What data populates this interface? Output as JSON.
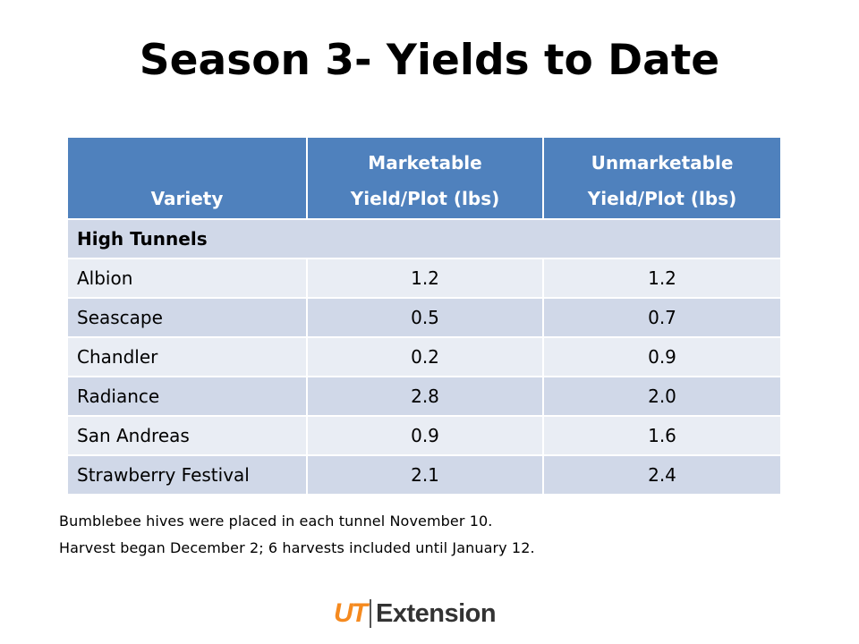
{
  "slide": {
    "title": "Season 3- Yields to Date"
  },
  "table": {
    "headers": [
      {
        "line1": "",
        "line2": "Variety"
      },
      {
        "line1": "Marketable",
        "line2": "Yield/Plot (lbs)"
      },
      {
        "line1": "Unmarketable",
        "line2": "Yield/Plot (lbs)"
      }
    ],
    "section_label": "High Tunnels",
    "rows": [
      {
        "variety": "Albion",
        "marketable": "1.2",
        "unmarketable": "1.2"
      },
      {
        "variety": "Seascape",
        "marketable": "0.5",
        "unmarketable": "0.7"
      },
      {
        "variety": "Chandler",
        "marketable": "0.2",
        "unmarketable": "0.9"
      },
      {
        "variety": "Radiance",
        "marketable": "2.8",
        "unmarketable": "2.0"
      },
      {
        "variety": "San Andreas",
        "marketable": "0.9",
        "unmarketable": "1.6"
      },
      {
        "variety": "Strawberry Festival",
        "marketable": "2.1",
        "unmarketable": "2.4"
      }
    ]
  },
  "notes": [
    "Bumblebee hives were placed in each tunnel November 10.",
    "Harvest began December 2; 6 harvests included until January 12."
  ],
  "footer": {
    "logo_mark": "UT",
    "logo_text": "Extension"
  },
  "colors": {
    "header_bg": "#4f81bd",
    "band_dark": "#d0d8e8",
    "band_light": "#e9edf4",
    "logo_orange": "#f58a1f"
  }
}
